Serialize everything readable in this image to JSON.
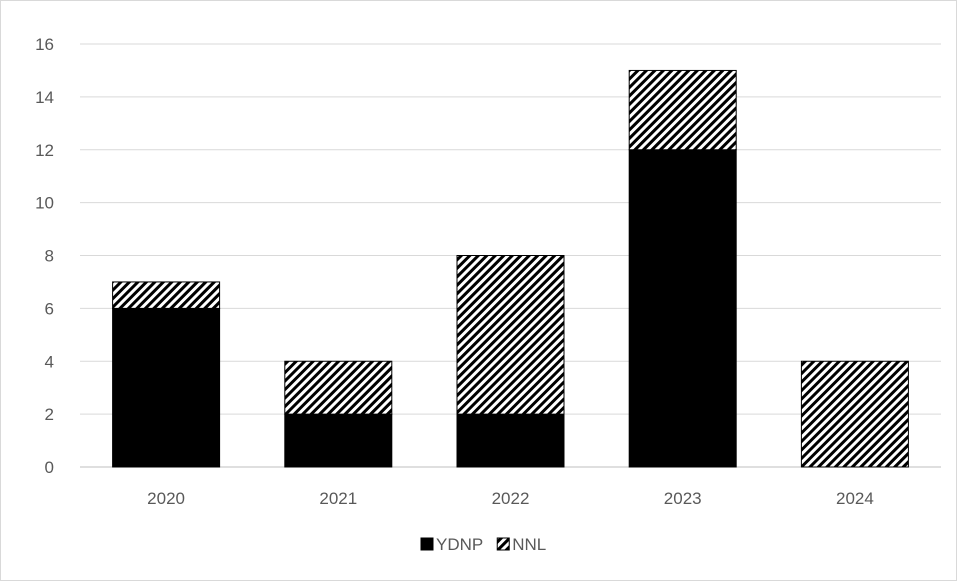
{
  "chart_data": {
    "type": "bar",
    "stacked": true,
    "categories": [
      "2020",
      "2021",
      "2022",
      "2023",
      "2024"
    ],
    "series": [
      {
        "name": "YDNP",
        "values": [
          6,
          2,
          2,
          12,
          0
        ],
        "fill": "solid",
        "color": "#000000"
      },
      {
        "name": "NNL",
        "values": [
          1,
          2,
          6,
          3,
          4
        ],
        "fill": "diagonal-hatch",
        "color": "#000000"
      }
    ],
    "ylim": [
      0,
      16
    ],
    "yticks": [
      "0",
      "2",
      "4",
      "6",
      "8",
      "10",
      "12",
      "14",
      "16"
    ],
    "grid": true,
    "legend_position": "bottom",
    "title": "",
    "xlabel": "",
    "ylabel": ""
  }
}
